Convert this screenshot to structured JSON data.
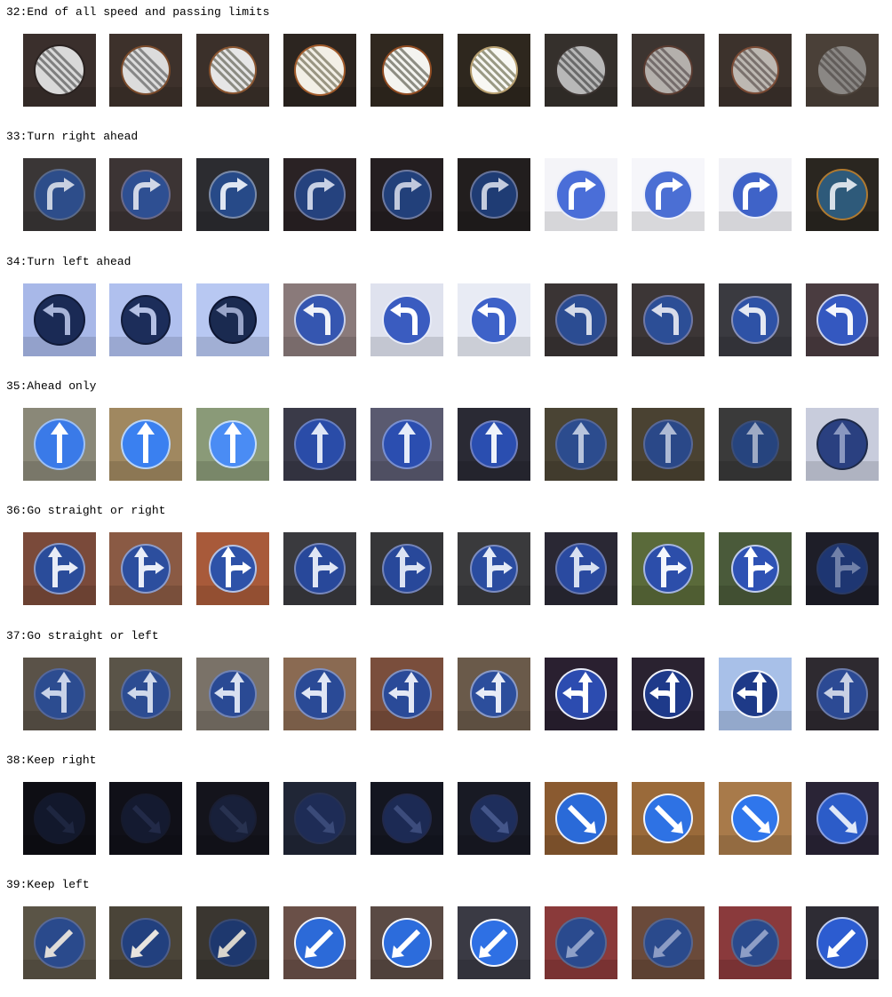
{
  "classes": [
    {
      "label": "32:End of all speed and passing limits",
      "sign": "end-limits-icon",
      "tiles": [
        {
          "bg": "#3a2f2c",
          "face": "#d9d9d9",
          "rim": "#2a2220",
          "stripe": "#6e6e6e"
        },
        {
          "bg": "#3d312b",
          "face": "#dcdcdc",
          "rim": "#7a4a2a",
          "stripe": "#777777"
        },
        {
          "bg": "#3b302a",
          "face": "#e6e6e6",
          "rim": "#8a5530",
          "stripe": "#7a7a70"
        },
        {
          "bg": "#2c2520",
          "face": "#f2efe6",
          "rim": "#a05a2a",
          "stripe": "#8a8570"
        },
        {
          "bg": "#30281f",
          "face": "#f4f4f0",
          "rim": "#8f4a20",
          "stripe": "#7a7a70"
        },
        {
          "bg": "#2e271e",
          "face": "#f8f8f4",
          "rim": "#b8a070",
          "stripe": "#888870"
        },
        {
          "bg": "#35302c",
          "face": "#b8b8b8",
          "rim": "#3a3330",
          "stripe": "#5c5c5c"
        },
        {
          "bg": "#3c3430",
          "face": "#b4b0ac",
          "rim": "#5a3b30",
          "stripe": "#6a6260"
        },
        {
          "bg": "#3c322c",
          "face": "#bdb8b2",
          "rim": "#7a4a34",
          "stripe": "#6e6460"
        },
        {
          "bg": "#4a4038",
          "face": "#8a8784",
          "rim": "#4a4038",
          "stripe": "#5a5652"
        }
      ]
    },
    {
      "label": "33:Turn right ahead",
      "sign": "turn-right-icon",
      "tiles": [
        {
          "bg": "#3a3636",
          "face": "#2d4d8a",
          "rim": "#5a6a8a",
          "arrow": "#c8d0e0"
        },
        {
          "bg": "#3c3434",
          "face": "#2e4f92",
          "rim": "#6a6a8a",
          "arrow": "#d0d6e6"
        },
        {
          "bg": "#2c2c30",
          "face": "#274a88",
          "rim": "#7a8aa8",
          "arrow": "#dfe6f2"
        },
        {
          "bg": "#2a2224",
          "face": "#25427e",
          "rim": "#6e7aa0",
          "arrow": "#c8d0e4"
        },
        {
          "bg": "#241e20",
          "face": "#22407a",
          "rim": "#6e7aa0",
          "arrow": "#c0c8dc"
        },
        {
          "bg": "#221e1e",
          "face": "#1f3c74",
          "rim": "#66739a",
          "arrow": "#c4ccde"
        },
        {
          "bg": "#f4f4f8",
          "face": "#4a6ed8",
          "rim": "#e8ecf8",
          "arrow": "#ffffff"
        },
        {
          "bg": "#f6f6fa",
          "face": "#4b6fd4",
          "rim": "#eef0fa",
          "arrow": "#ffffff"
        },
        {
          "bg": "#f2f2f6",
          "face": "#3f63c8",
          "rim": "#e8ecf8",
          "arrow": "#ffffff"
        },
        {
          "bg": "#2a2620",
          "face": "#2e5a7a",
          "rim": "#b07a30",
          "arrow": "#d8e0e8"
        }
      ]
    },
    {
      "label": "34:Turn left ahead",
      "sign": "turn-left-icon",
      "tiles": [
        {
          "bg": "#a8b8e8",
          "face": "#1a2a55",
          "rim": "#101a38",
          "arrow": "#a8b4d8"
        },
        {
          "bg": "#b0c0ee",
          "face": "#1c2d5a",
          "rim": "#121c3a",
          "arrow": "#b4c0e4"
        },
        {
          "bg": "#b8c8f2",
          "face": "#1a2a50",
          "rim": "#0c1430",
          "arrow": "#98a4c8"
        },
        {
          "bg": "#8a7a7a",
          "face": "#3556b0",
          "rim": "#c8d0e8",
          "arrow": "#f0f2f8"
        },
        {
          "bg": "#dfe2ee",
          "face": "#3a5cc0",
          "rim": "#e8ecf8",
          "arrow": "#ffffff"
        },
        {
          "bg": "#e8ebf4",
          "face": "#3e62c8",
          "rim": "#eef0fa",
          "arrow": "#ffffff"
        },
        {
          "bg": "#3a3434",
          "face": "#2b4c92",
          "rim": "#6a74a0",
          "arrow": "#d4dae8"
        },
        {
          "bg": "#3c3636",
          "face": "#2c4e96",
          "rim": "#7078a4",
          "arrow": "#d8dcea"
        },
        {
          "bg": "#3a3a40",
          "face": "#2e52a6",
          "rim": "#8890b8",
          "arrow": "#e4e8f2"
        },
        {
          "bg": "#4a3c40",
          "face": "#3458c0",
          "rim": "#c8d0ec",
          "arrow": "#f4f6fc"
        }
      ]
    },
    {
      "label": "35:Ahead only",
      "sign": "ahead-only-icon",
      "tiles": [
        {
          "bg": "#8a8878",
          "face": "#3a7ae8",
          "rim": "#9ec0f4",
          "arrow": "#ffffff"
        },
        {
          "bg": "#a08860",
          "face": "#3a80f0",
          "rim": "#b8d4f8",
          "arrow": "#ffffff"
        },
        {
          "bg": "#8a9a78",
          "face": "#4a8cf4",
          "rim": "#c4dcfa",
          "arrow": "#ffffff"
        },
        {
          "bg": "#3a3a48",
          "face": "#2a4ca8",
          "rim": "#6a80c0",
          "arrow": "#dfe6f6"
        },
        {
          "bg": "#5a5a70",
          "face": "#2b4eb0",
          "rim": "#7a90d0",
          "arrow": "#e6ecf8"
        },
        {
          "bg": "#2a2a34",
          "face": "#2a4eb0",
          "rim": "#7080c0",
          "arrow": "#eef2fa"
        },
        {
          "bg": "#4a4434",
          "face": "#2c4c8e",
          "rim": "#56689a",
          "arrow": "#b8c4dc"
        },
        {
          "bg": "#4a4232",
          "face": "#2a4888",
          "rim": "#586896",
          "arrow": "#aebad4"
        },
        {
          "bg": "#3a3a3a",
          "face": "#26447e",
          "rim": "#3c4e78",
          "arrow": "#9eaac4"
        },
        {
          "bg": "#c8ccdc",
          "face": "#2a4080",
          "rim": "#1e2a48",
          "arrow": "#8a98c0"
        }
      ]
    },
    {
      "label": "36:Go straight or right",
      "sign": "straight-or-right-icon",
      "tiles": [
        {
          "bg": "#7a4a3a",
          "face": "#2a4c9a",
          "rim": "#8a9ac8",
          "arrow": "#e8ecf6"
        },
        {
          "bg": "#8a5a44",
          "face": "#2c4e9e",
          "rim": "#8c9cca",
          "arrow": "#eaeef8"
        },
        {
          "bg": "#a85a3a",
          "face": "#2e52a8",
          "rim": "#b4c2e4",
          "arrow": "#ffffff"
        },
        {
          "bg": "#3a3a3e",
          "face": "#28489a",
          "rim": "#7888bc",
          "arrow": "#e0e6f4"
        },
        {
          "bg": "#363638",
          "face": "#28489a",
          "rim": "#7484b8",
          "arrow": "#dce2f2"
        },
        {
          "bg": "#3a3a3c",
          "face": "#2a4ca0",
          "rim": "#7c8cc0",
          "arrow": "#e4eaf6"
        },
        {
          "bg": "#2a2834",
          "face": "#2a4aa0",
          "rim": "#6a7ab0",
          "arrow": "#d8e0f0"
        },
        {
          "bg": "#5a6a3a",
          "face": "#2c4eaa",
          "rim": "#a4b4e0",
          "arrow": "#f4f6fc"
        },
        {
          "bg": "#4a5a3a",
          "face": "#2e52b4",
          "rim": "#c0cced",
          "arrow": "#ffffff"
        },
        {
          "bg": "#1e1e28",
          "face": "#1e3672",
          "rim": "#2a3a64",
          "arrow": "#7080a8"
        }
      ]
    },
    {
      "label": "37:Go straight or left",
      "sign": "straight-or-left-icon",
      "tiles": [
        {
          "bg": "#5a5248",
          "face": "#2c4c90",
          "rim": "#56689a",
          "arrow": "#c8d2e8"
        },
        {
          "bg": "#5a5448",
          "face": "#2c4c92",
          "rim": "#5a6c9c",
          "arrow": "#cfd8ea"
        },
        {
          "bg": "#7a7268",
          "face": "#2a4a94",
          "rim": "#7284b4",
          "arrow": "#d8e0f0"
        },
        {
          "bg": "#8a6a52",
          "face": "#2a4a96",
          "rim": "#8090c0",
          "arrow": "#e0e6f4"
        },
        {
          "bg": "#7a4e3c",
          "face": "#2a4a98",
          "rim": "#8292c0",
          "arrow": "#e4e8f4"
        },
        {
          "bg": "#6a5a4a",
          "face": "#2c4e9c",
          "rim": "#8a9ac6",
          "arrow": "#e8ecf6"
        },
        {
          "bg": "#2a2030",
          "face": "#2c4cb0",
          "rim": "#e8ecf8",
          "arrow": "#ffffff"
        },
        {
          "bg": "#2a2230",
          "face": "#1e3a8a",
          "rim": "#f0f2fa",
          "arrow": "#ffffff"
        },
        {
          "bg": "#a8c0e8",
          "face": "#1e3a88",
          "rim": "#f4f6fc",
          "arrow": "#ffffff"
        },
        {
          "bg": "#2e2a30",
          "face": "#2c4a94",
          "rim": "#6a7aa8",
          "arrow": "#c8d0e4"
        }
      ]
    },
    {
      "label": "38:Keep right",
      "sign": "keep-right-icon",
      "tiles": [
        {
          "bg": "#0e0e14",
          "face": "#12182c",
          "rim": "#14182a",
          "arrow": "#1e2640"
        },
        {
          "bg": "#101018",
          "face": "#141a30",
          "rim": "#161a2c",
          "arrow": "#222a48"
        },
        {
          "bg": "#14141c",
          "face": "#18203a",
          "rim": "#1a1e32",
          "arrow": "#283250"
        },
        {
          "bg": "#202636",
          "face": "#1e2c56",
          "rim": "#263050",
          "arrow": "#3a4a78"
        },
        {
          "bg": "#141620",
          "face": "#1c2a54",
          "rim": "#22294a",
          "arrow": "#3c4c7c"
        },
        {
          "bg": "#181a24",
          "face": "#1e2e5c",
          "rim": "#262e52",
          "arrow": "#44568a"
        },
        {
          "bg": "#8a5a30",
          "face": "#2a6ad8",
          "rim": "#e8ecf8",
          "arrow": "#ffffff"
        },
        {
          "bg": "#9a6a3a",
          "face": "#2e72e4",
          "rim": "#f0f2fa",
          "arrow": "#ffffff"
        },
        {
          "bg": "#a87a4a",
          "face": "#2f76ec",
          "rim": "#f4f6fc",
          "arrow": "#ffffff"
        },
        {
          "bg": "#2a2436",
          "face": "#2c5cc8",
          "rim": "#8aa0e0",
          "arrow": "#e0e8f8"
        }
      ]
    },
    {
      "label": "39:Keep left",
      "sign": "keep-left-icon",
      "tiles": [
        {
          "bg": "#5a5446",
          "face": "#2a4a8c",
          "rim": "#5a6a96",
          "arrow": "#e0dcd8"
        },
        {
          "bg": "#4a4438",
          "face": "#22407e",
          "rim": "#4e5e8a",
          "arrow": "#e8e4de"
        },
        {
          "bg": "#3a3630",
          "face": "#1e386e",
          "rim": "#3a4a72",
          "arrow": "#d8d4cc"
        },
        {
          "bg": "#6a5048",
          "face": "#2c6ad8",
          "rim": "#f0f2fa",
          "arrow": "#ffffff"
        },
        {
          "bg": "#5a4a44",
          "face": "#2c6cdc",
          "rim": "#f2f4fa",
          "arrow": "#ffffff"
        },
        {
          "bg": "#3a3a44",
          "face": "#2e70e4",
          "rim": "#f4f6fc",
          "arrow": "#ffffff"
        },
        {
          "bg": "#8a3a3a",
          "face": "#2a4a8e",
          "rim": "#5a6890",
          "arrow": "#8ea0c8"
        },
        {
          "bg": "#6a4a3a",
          "face": "#2a4a8c",
          "rim": "#58668e",
          "arrow": "#8c9cc4"
        },
        {
          "bg": "#8a3a3c",
          "face": "#2a4a8c",
          "rim": "#58668e",
          "arrow": "#8e9ec6"
        },
        {
          "bg": "#2e2c34",
          "face": "#2c5cd0",
          "rim": "#c0cced",
          "arrow": "#ffffff"
        }
      ]
    }
  ]
}
